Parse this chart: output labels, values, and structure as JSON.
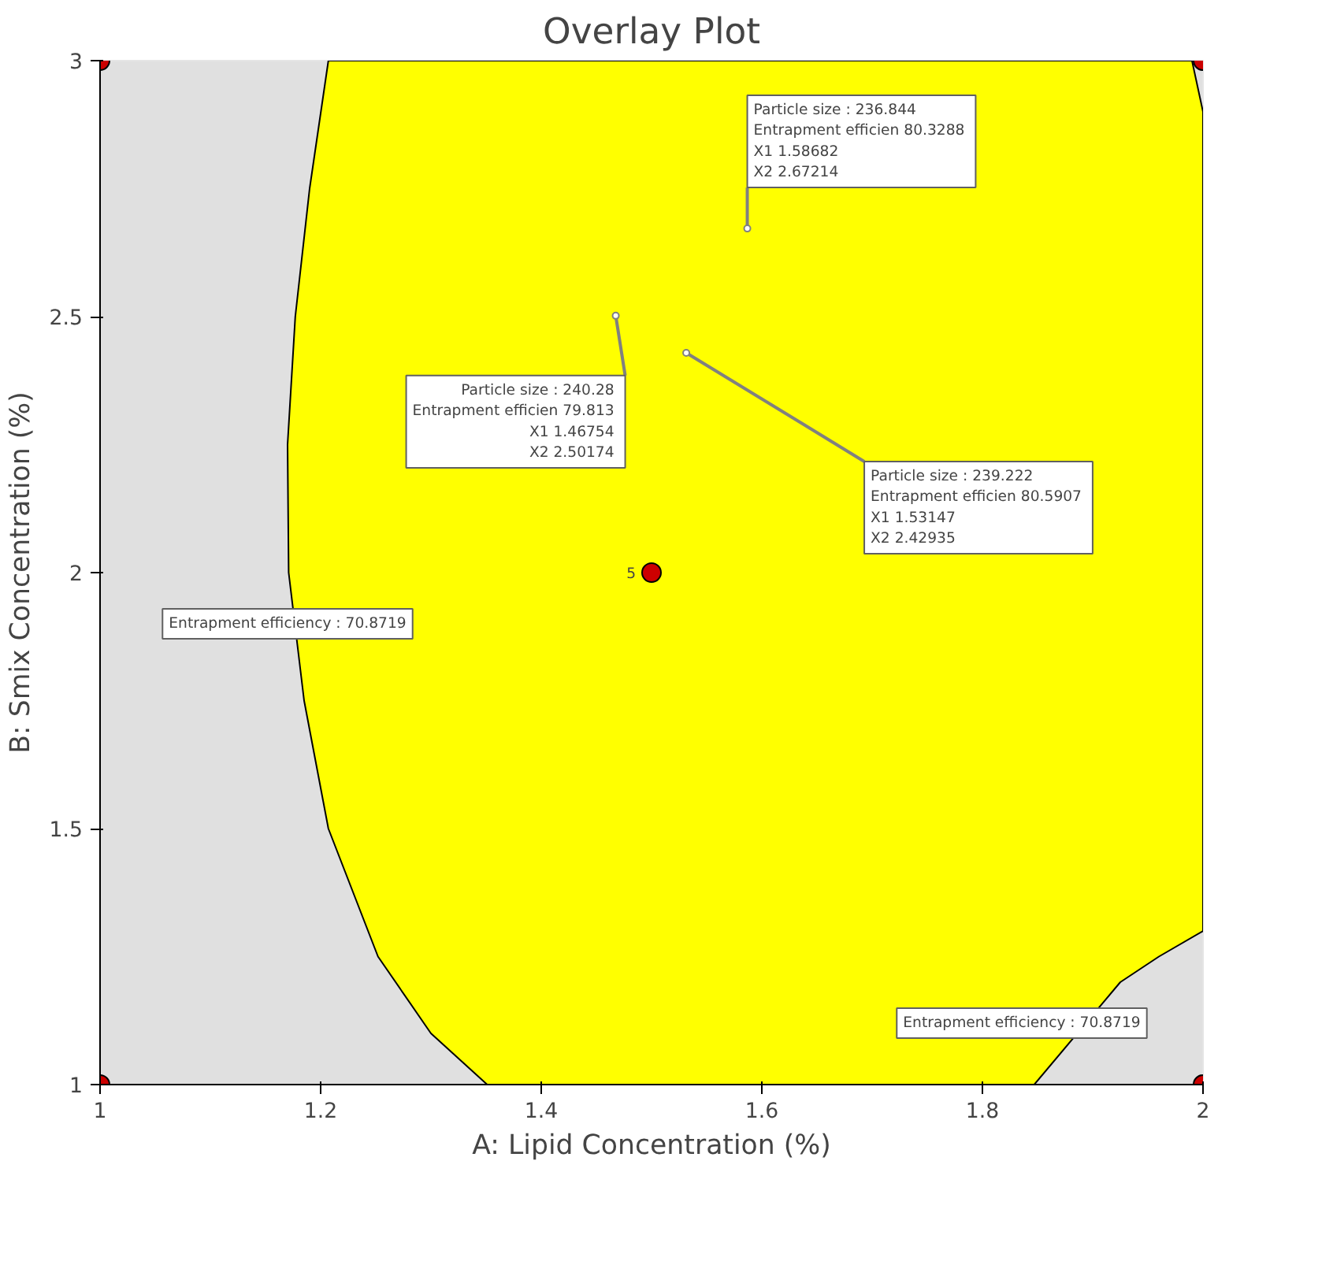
{
  "chart_data": {
    "type": "scatter",
    "title": "Overlay Plot",
    "xlabel": "A: Lipid Concentration (%)",
    "ylabel": "B: Smix Concentration (%)",
    "xlim": [
      1,
      2
    ],
    "ylim": [
      1,
      3
    ],
    "xticks": [
      1,
      1.2,
      1.4,
      1.6,
      1.8,
      2
    ],
    "yticks": [
      1,
      1.5,
      2,
      2.5,
      3
    ],
    "series": [
      {
        "type": "area",
        "color": "#ffff00",
        "x": [
          1.351,
          1.3,
          1.252,
          1.207,
          1.185,
          1.171,
          1.17,
          1.177,
          1.19,
          1.207,
          1.99,
          2,
          2,
          1.96,
          1.925,
          1.847
        ],
        "values": [
          1,
          1.1,
          1.25,
          1.5,
          1.75,
          2,
          2.25,
          2.5,
          2.75,
          3,
          3,
          2.9,
          1.3,
          1.25,
          1.2,
          1
        ]
      },
      {
        "marker": "circle",
        "color": "#cc0000",
        "x": [
          1,
          1,
          2,
          2,
          1.5
        ],
        "values": [
          1,
          3,
          1,
          3,
          2
        ]
      }
    ],
    "annotations": [
      {
        "text": "Particle size :  236.844\nEntrapment efficien  80.3288\nX1  1.58682\nX2  2.67214",
        "x": 1.58682,
        "y": 2.67214
      },
      {
        "text": "Particle size :  240.28\nEntrapment efficien  79.813\nX1  1.46754\nX2  2.50174",
        "x": 1.46754,
        "y": 2.50174
      },
      {
        "text": "Particle size :  239.222\nEntrapment efficien  80.5907\nX1  1.53147\nX2  2.42935",
        "x": 1.53147,
        "y": 2.42935
      },
      {
        "text": "Entrapment efficiency : 70.8719",
        "x": 1.17,
        "y": 1.9
      },
      {
        "text": "Entrapment efficiency : 70.8719",
        "x": 1.9,
        "y": 1.12
      },
      {
        "text": "5",
        "x": 1.5,
        "y": 2
      }
    ]
  }
}
